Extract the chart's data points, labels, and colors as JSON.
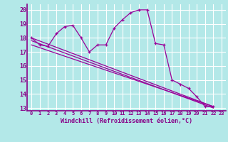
{
  "xlabel": "Windchill (Refroidissement éolien,°C)",
  "bg_color": "#b3e8e8",
  "grid_color": "#ffffff",
  "line_color": "#990099",
  "axis_color": "#880088",
  "ylim": [
    12.8,
    20.4
  ],
  "xlim": [
    -0.5,
    23.5
  ],
  "yticks": [
    13,
    14,
    15,
    16,
    17,
    18,
    19,
    20
  ],
  "xticks": [
    0,
    1,
    2,
    3,
    4,
    5,
    6,
    7,
    8,
    9,
    10,
    11,
    12,
    13,
    14,
    15,
    16,
    17,
    18,
    19,
    20,
    21,
    22,
    23
  ],
  "series1_x": [
    0,
    1,
    2,
    3,
    4,
    5,
    6,
    7,
    8,
    9,
    10,
    11,
    12,
    13,
    14,
    15,
    16,
    17,
    18,
    19,
    20,
    21,
    22
  ],
  "series1_y": [
    18.0,
    17.5,
    17.4,
    18.3,
    18.8,
    18.9,
    18.0,
    17.0,
    17.5,
    17.5,
    18.7,
    19.3,
    19.8,
    20.0,
    20.0,
    17.6,
    17.5,
    15.0,
    14.7,
    14.4,
    13.8,
    13.1,
    13.1
  ],
  "series2_x": [
    0,
    22
  ],
  "series2_y": [
    18.0,
    13.1
  ],
  "series3_x": [
    0,
    22
  ],
  "series3_y": [
    17.5,
    13.1
  ],
  "series4_x": [
    0,
    22
  ],
  "series4_y": [
    17.8,
    13.0
  ]
}
